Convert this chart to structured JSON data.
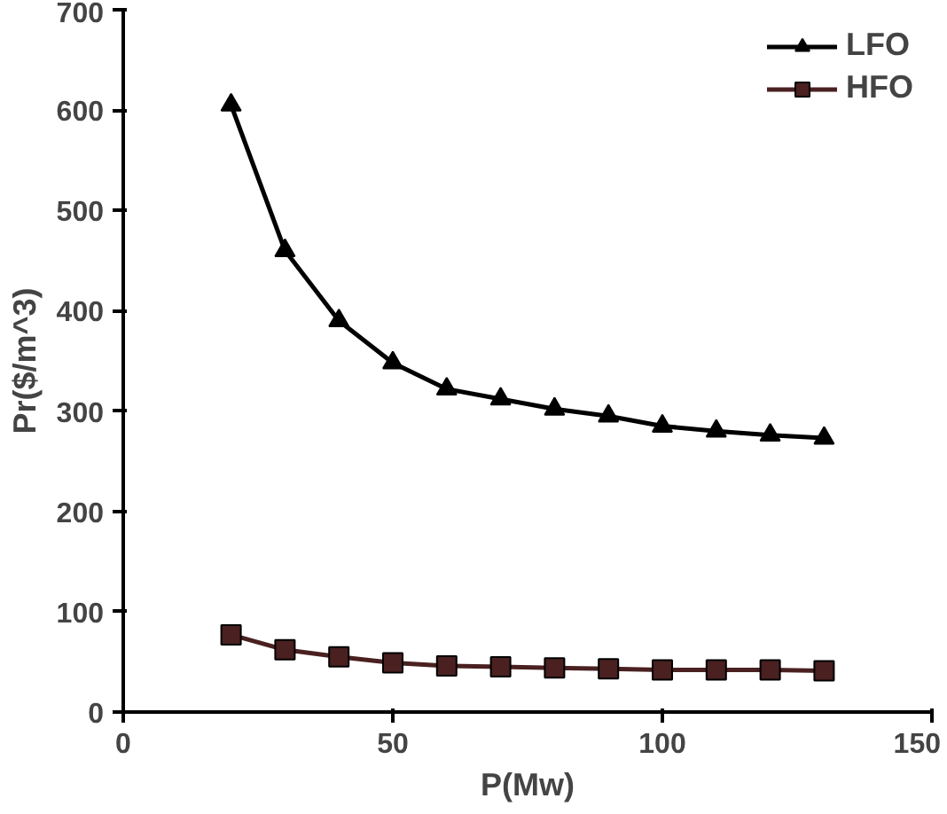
{
  "chart_data": {
    "type": "line",
    "xlabel": "P(Mw)",
    "ylabel": "Pr($/m^3)",
    "x": [
      20,
      30,
      40,
      50,
      60,
      70,
      80,
      90,
      100,
      110,
      120,
      130
    ],
    "series": [
      {
        "name": "LFO",
        "color": "#000000",
        "marker": "triangle",
        "values": [
          605,
          460,
          390,
          348,
          322,
          312,
          302,
          295,
          285,
          280,
          276,
          273
        ]
      },
      {
        "name": "HFO",
        "color": "#4a2020",
        "marker": "square",
        "values": [
          77,
          62,
          55,
          49,
          46,
          45,
          44,
          43,
          42,
          42,
          42,
          41
        ]
      }
    ],
    "xlim": [
      0,
      150
    ],
    "xticks": [
      0,
      50,
      100,
      150
    ],
    "ylim": [
      0,
      700
    ],
    "yticks": [
      0,
      100,
      200,
      300,
      400,
      500,
      600,
      700
    ],
    "grid": false,
    "legend": "top right",
    "line_style": "solid"
  }
}
